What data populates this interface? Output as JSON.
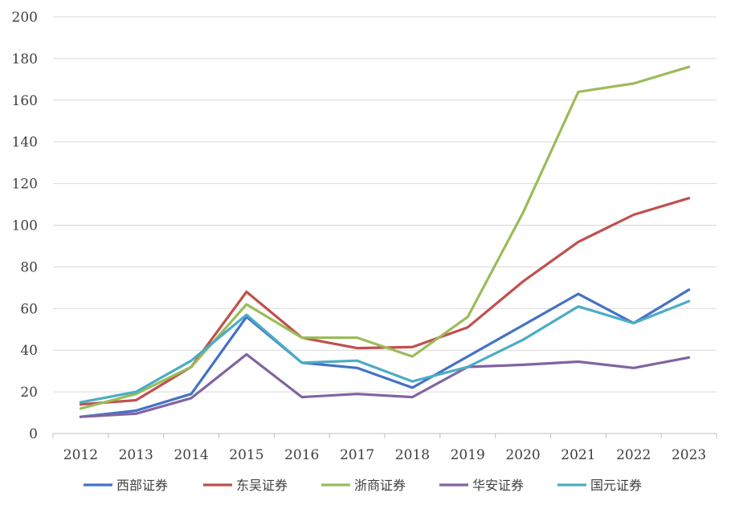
{
  "chart_data": {
    "type": "line",
    "categories": [
      "2012",
      "2013",
      "2014",
      "2015",
      "2016",
      "2017",
      "2018",
      "2019",
      "2020",
      "2021",
      "2022",
      "2023"
    ],
    "ylim": [
      0,
      200
    ],
    "yticks": [
      0,
      20,
      40,
      60,
      80,
      100,
      120,
      140,
      160,
      180,
      200
    ],
    "grid": true,
    "legend_position": "bottom",
    "series": [
      {
        "name": "西部证券",
        "color": "#4472C4",
        "values": [
          8,
          11,
          19,
          56,
          34,
          31.5,
          22,
          37,
          52,
          67,
          53,
          69
        ]
      },
      {
        "name": "东吴证券",
        "color": "#C0504D",
        "values": [
          14,
          16,
          32,
          68,
          46,
          41,
          41.5,
          51,
          73,
          92,
          105,
          113
        ]
      },
      {
        "name": "浙商证券",
        "color": "#9BBB59",
        "values": [
          12,
          19,
          32,
          62,
          46,
          46,
          37,
          56,
          106,
          164,
          168,
          176
        ]
      },
      {
        "name": "华安证券",
        "color": "#8064A2",
        "values": [
          8,
          9.5,
          17,
          38,
          17.5,
          19,
          17.5,
          32,
          33,
          34.5,
          31.5,
          36.5
        ]
      },
      {
        "name": "国元证券",
        "color": "#4BACC6",
        "values": [
          15,
          20,
          35,
          57,
          34,
          35,
          25,
          32,
          45,
          61,
          53,
          63.5
        ]
      }
    ]
  }
}
